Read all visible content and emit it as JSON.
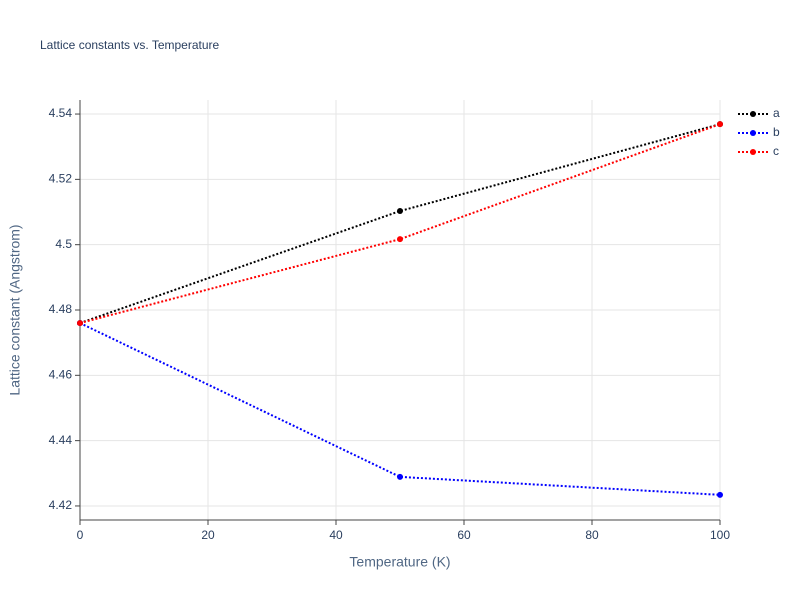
{
  "chart_data": {
    "type": "line",
    "title": "Lattice constants vs. Temperature",
    "x_label": "Temperature (K)",
    "y_label": "Lattice constant (Angstrom)",
    "x": [
      0,
      50,
      100
    ],
    "series": [
      {
        "name": "a",
        "color": "#000000",
        "values": [
          4.476,
          4.5103,
          4.5369
        ]
      },
      {
        "name": "b",
        "color": "#0000ff",
        "values": [
          4.476,
          4.4289,
          4.4234
        ]
      },
      {
        "name": "c",
        "color": "#ff0000",
        "values": [
          4.476,
          4.5017,
          4.5369
        ]
      }
    ],
    "xlim": [
      0,
      100
    ],
    "xticks": [
      0,
      20,
      40,
      60,
      80,
      100
    ],
    "ylim": [
      4.4157,
      4.5443
    ],
    "yticks": [
      4.42,
      4.44,
      4.46,
      4.48,
      4.5,
      4.52,
      4.54
    ],
    "grid": true,
    "legend": "top-right"
  }
}
